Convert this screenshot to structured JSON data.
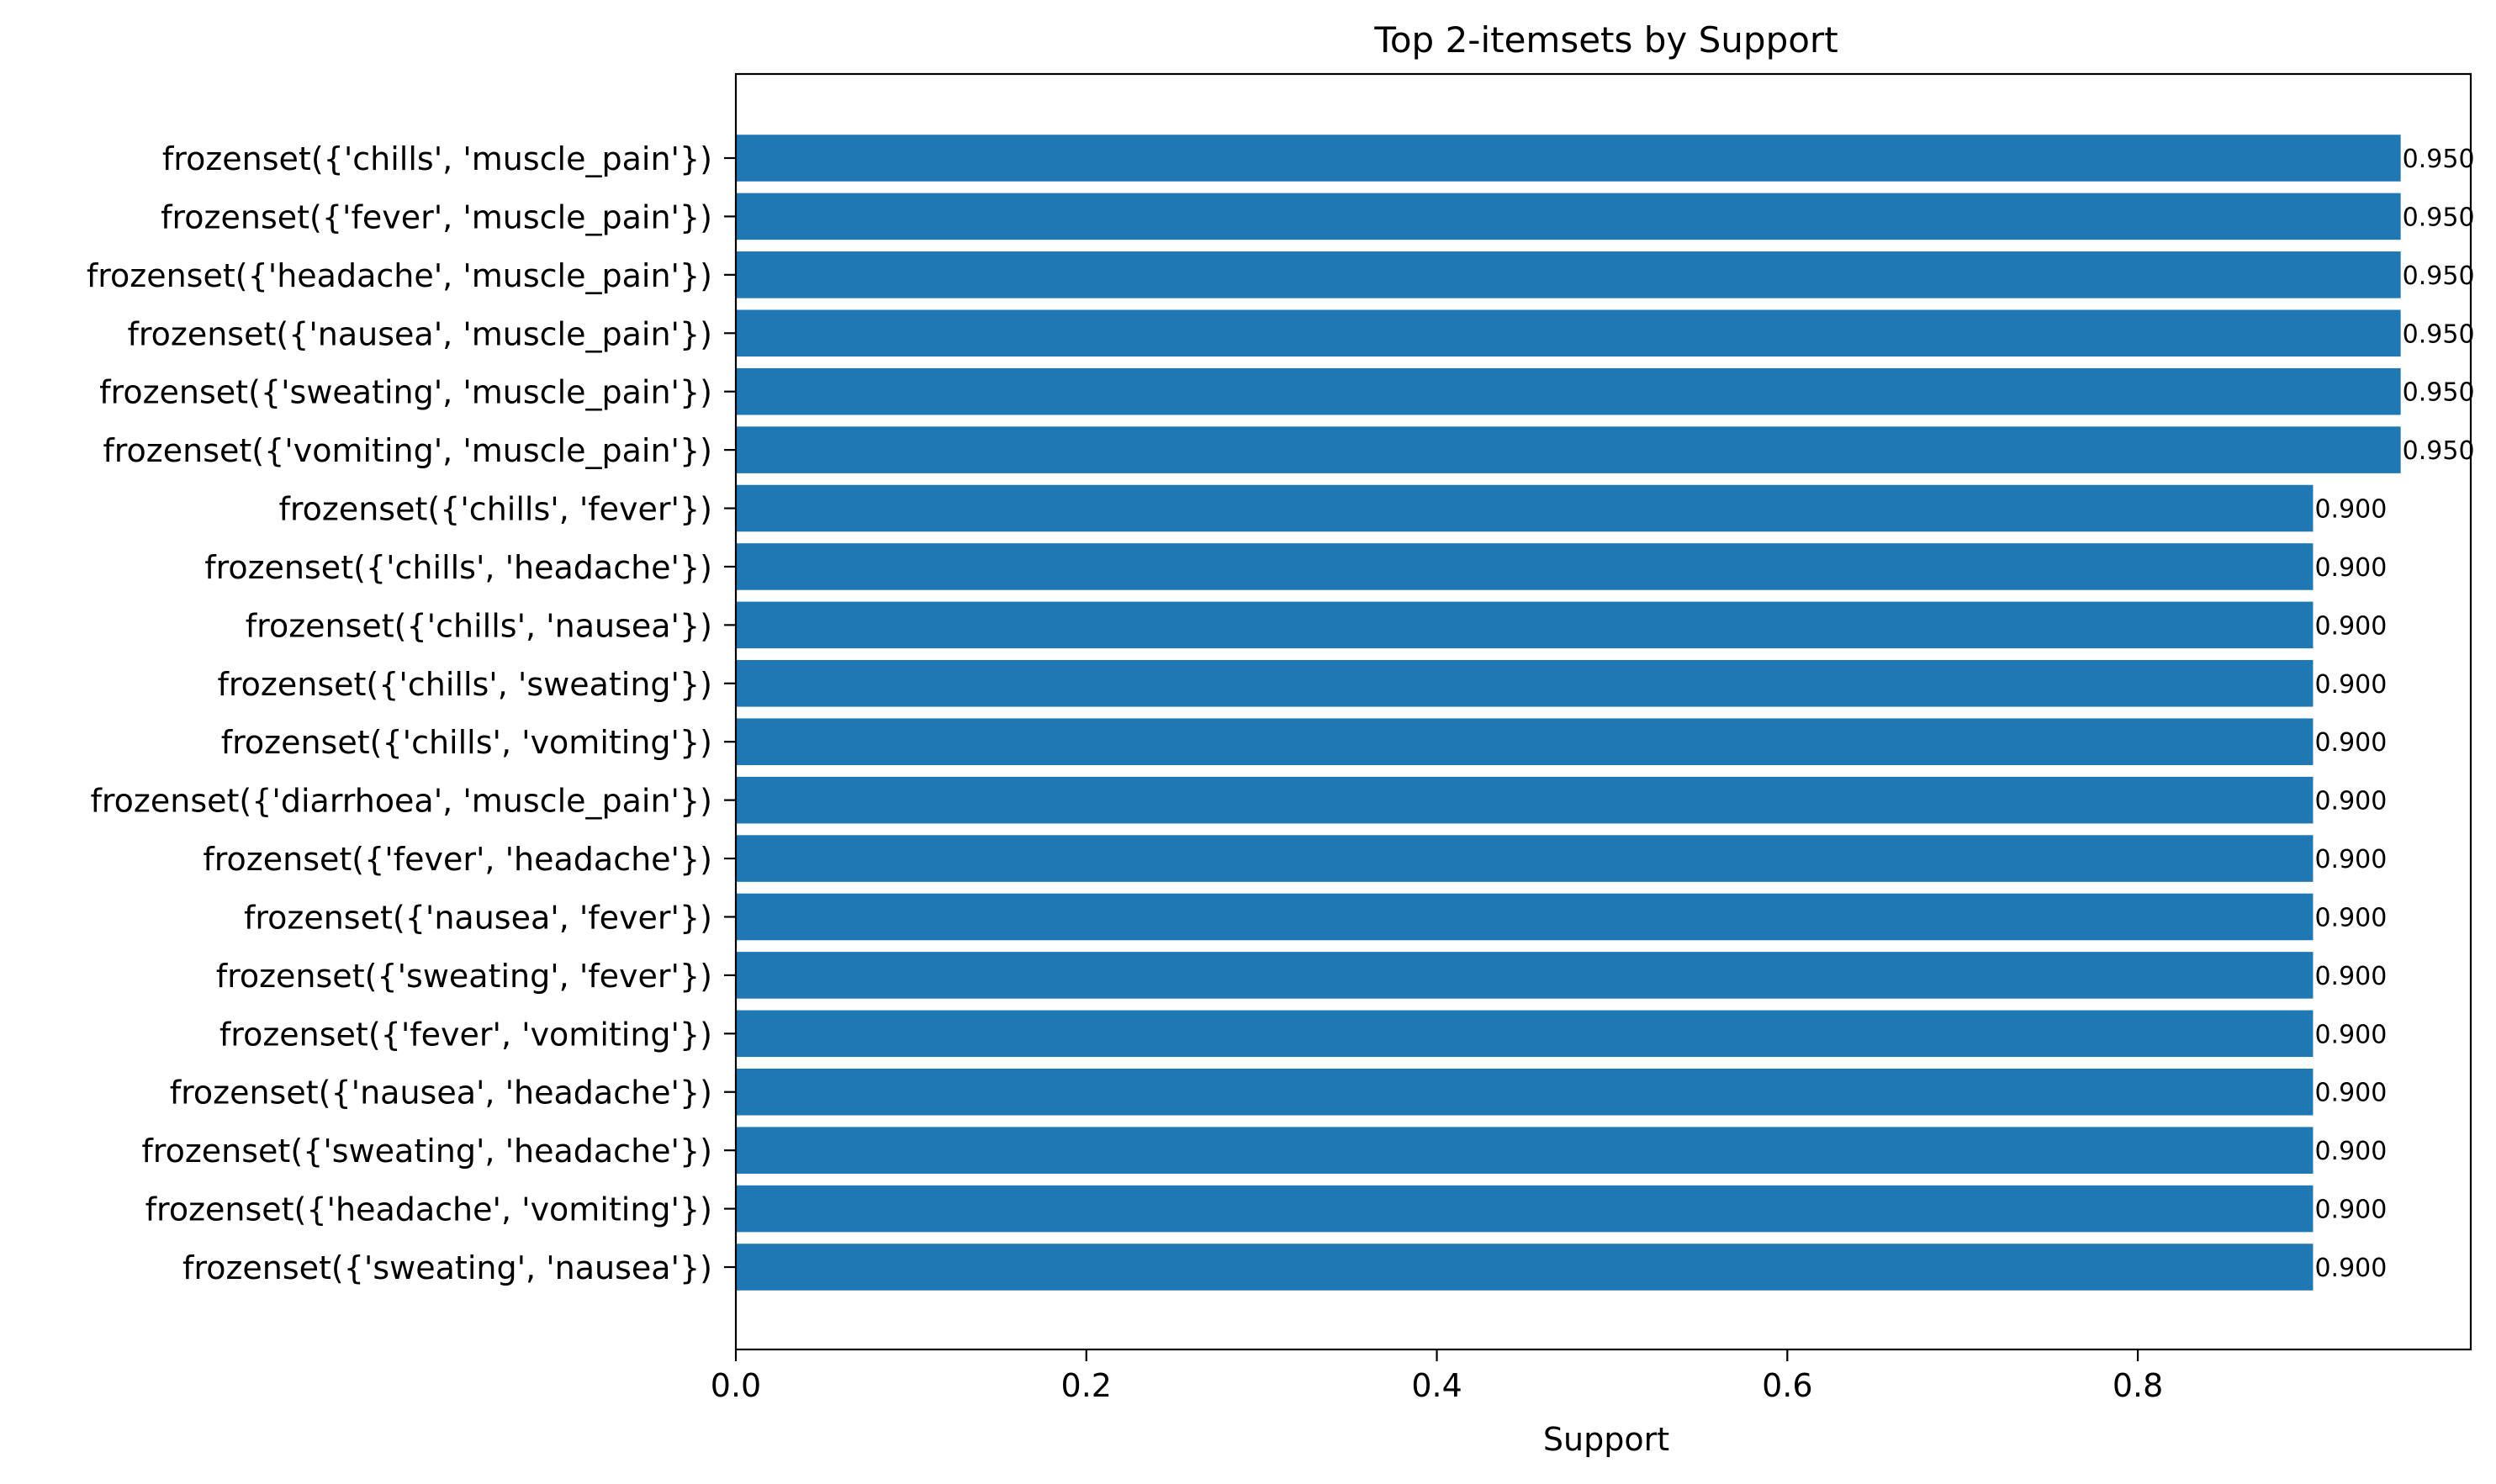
{
  "chart_data": {
    "type": "bar",
    "orientation": "horizontal",
    "title": "Top 2-itemsets by Support",
    "xlabel": "Support",
    "ylabel": "",
    "xlim": [
      0,
      0.99
    ],
    "x_ticks": [
      0.0,
      0.2,
      0.4,
      0.6,
      0.8
    ],
    "x_tick_labels": [
      "0.0",
      "0.2",
      "0.4",
      "0.6",
      "0.8"
    ],
    "bar_color": "#1f77b4",
    "grid": false,
    "legend": "none",
    "categories": [
      "frozenset({'chills', 'muscle_pain'})",
      "frozenset({'fever', 'muscle_pain'})",
      "frozenset({'headache', 'muscle_pain'})",
      "frozenset({'nausea', 'muscle_pain'})",
      "frozenset({'sweating', 'muscle_pain'})",
      "frozenset({'vomiting', 'muscle_pain'})",
      "frozenset({'chills', 'fever'})",
      "frozenset({'chills', 'headache'})",
      "frozenset({'chills', 'nausea'})",
      "frozenset({'chills', 'sweating'})",
      "frozenset({'chills', 'vomiting'})",
      "frozenset({'diarrhoea', 'muscle_pain'})",
      "frozenset({'fever', 'headache'})",
      "frozenset({'nausea', 'fever'})",
      "frozenset({'sweating', 'fever'})",
      "frozenset({'fever', 'vomiting'})",
      "frozenset({'nausea', 'headache'})",
      "frozenset({'sweating', 'headache'})",
      "frozenset({'headache', 'vomiting'})",
      "frozenset({'sweating', 'nausea'})"
    ],
    "values": [
      0.95,
      0.95,
      0.95,
      0.95,
      0.95,
      0.95,
      0.9,
      0.9,
      0.9,
      0.9,
      0.9,
      0.9,
      0.9,
      0.9,
      0.9,
      0.9,
      0.9,
      0.9,
      0.9,
      0.9
    ],
    "value_labels": [
      "0.950",
      "0.950",
      "0.950",
      "0.950",
      "0.950",
      "0.950",
      "0.900",
      "0.900",
      "0.900",
      "0.900",
      "0.900",
      "0.900",
      "0.900",
      "0.900",
      "0.900",
      "0.900",
      "0.900",
      "0.900",
      "0.900",
      "0.900"
    ]
  }
}
